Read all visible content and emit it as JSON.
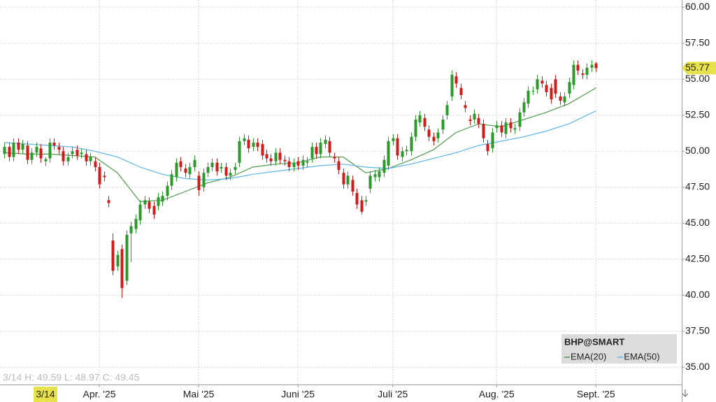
{
  "chart_data": {
    "type": "candlestick",
    "symbol": "BHP@SMART",
    "crosshair_info": "3/14 H: 49.59 L: 48.97 C: 49.45",
    "crosshair_date": "3/14",
    "up_color": "#2a9a2a",
    "down_color": "#d11a1a",
    "ohlc": [
      [
        49.8,
        50.6,
        49.5,
        50.3
      ],
      [
        50.3,
        50.6,
        49.3,
        49.6
      ],
      [
        49.6,
        50.9,
        49.3,
        50.6
      ],
      [
        50.6,
        50.9,
        49.8,
        50.1
      ],
      [
        50.1,
        50.8,
        49.8,
        50.5
      ],
      [
        50.4,
        50.7,
        49.1,
        49.4
      ],
      [
        49.4,
        50.2,
        49.1,
        49.9
      ],
      [
        49.9,
        50.6,
        49.6,
        50.3
      ],
      [
        50.2,
        50.5,
        49.2,
        49.5
      ],
      [
        49.3,
        49.59,
        48.97,
        49.45
      ],
      [
        49.5,
        50.9,
        49.2,
        50.6
      ],
      [
        50.6,
        50.9,
        50.1,
        50.4
      ],
      [
        50.3,
        50.6,
        49.8,
        50.1
      ],
      [
        50.0,
        50.3,
        49.0,
        49.3
      ],
      [
        49.3,
        49.9,
        49.0,
        49.6
      ],
      [
        49.8,
        50.3,
        49.5,
        50.0
      ],
      [
        50.1,
        50.4,
        49.4,
        49.7
      ],
      [
        49.8,
        50.2,
        49.5,
        49.9
      ],
      [
        49.8,
        50.1,
        49.0,
        49.3
      ],
      [
        49.3,
        49.9,
        49.0,
        49.6
      ],
      [
        49.3,
        49.6,
        48.6,
        48.9
      ],
      [
        48.9,
        49.2,
        47.4,
        47.7
      ],
      [
        48.3,
        48.6,
        47.9,
        48.2
      ],
      [
        46.6,
        46.9,
        46.1,
        46.4
      ],
      [
        43.8,
        44.3,
        41.4,
        41.7
      ],
      [
        42.0,
        43.1,
        41.7,
        42.8
      ],
      [
        43.2,
        43.5,
        39.8,
        40.5
      ],
      [
        41.0,
        44.5,
        40.7,
        44.2
      ],
      [
        44.3,
        45.1,
        42.3,
        44.8
      ],
      [
        44.6,
        45.6,
        44.3,
        45.3
      ],
      [
        45.2,
        46.6,
        44.9,
        46.3
      ],
      [
        46.3,
        46.9,
        46.0,
        46.6
      ],
      [
        46.5,
        46.8,
        45.7,
        46.0
      ],
      [
        46.2,
        46.5,
        45.3,
        45.6
      ],
      [
        46.2,
        47.1,
        45.9,
        46.8
      ],
      [
        46.5,
        47.2,
        46.2,
        46.9
      ],
      [
        46.9,
        47.9,
        46.6,
        47.6
      ],
      [
        47.6,
        48.7,
        47.3,
        48.4
      ],
      [
        48.2,
        49.5,
        47.9,
        49.2
      ],
      [
        49.3,
        49.6,
        48.6,
        48.9
      ],
      [
        48.8,
        49.1,
        48.2,
        48.5
      ],
      [
        48.4,
        49.2,
        48.1,
        48.9
      ],
      [
        48.9,
        49.7,
        48.6,
        49.4
      ],
      [
        48.3,
        48.6,
        46.9,
        47.3
      ],
      [
        47.5,
        48.8,
        47.2,
        48.5
      ],
      [
        48.5,
        49.2,
        48.2,
        48.9
      ],
      [
        48.9,
        49.5,
        48.6,
        49.2
      ],
      [
        49.2,
        49.5,
        48.3,
        48.6
      ],
      [
        48.8,
        49.2,
        48.5,
        48.9
      ],
      [
        48.9,
        49.2,
        48.0,
        48.3
      ],
      [
        48.3,
        48.8,
        48.0,
        48.5
      ],
      [
        48.7,
        49.2,
        48.4,
        48.9
      ],
      [
        49.2,
        51.0,
        48.9,
        50.7
      ],
      [
        50.7,
        51.2,
        50.4,
        50.9
      ],
      [
        50.8,
        51.1,
        49.9,
        50.2
      ],
      [
        50.3,
        50.9,
        50.0,
        50.6
      ],
      [
        50.6,
        50.9,
        50.0,
        50.3
      ],
      [
        50.5,
        50.8,
        49.4,
        49.7
      ],
      [
        49.8,
        50.1,
        49.2,
        49.5
      ],
      [
        49.5,
        49.8,
        49.0,
        49.3
      ],
      [
        49.3,
        50.2,
        49.0,
        49.9
      ],
      [
        49.9,
        50.2,
        49.1,
        49.4
      ],
      [
        49.4,
        49.7,
        49.0,
        49.3
      ],
      [
        49.3,
        49.6,
        48.6,
        48.9
      ],
      [
        48.9,
        49.5,
        48.6,
        49.2
      ],
      [
        49.3,
        49.6,
        48.7,
        49.0
      ],
      [
        49.0,
        49.7,
        48.7,
        49.4
      ],
      [
        49.2,
        49.6,
        48.9,
        49.3
      ],
      [
        49.5,
        50.6,
        49.2,
        50.3
      ],
      [
        50.3,
        50.6,
        49.5,
        49.8
      ],
      [
        49.8,
        50.9,
        49.5,
        50.6
      ],
      [
        50.5,
        51.1,
        50.2,
        50.8
      ],
      [
        50.7,
        51.0,
        49.6,
        49.9
      ],
      [
        49.6,
        49.9,
        49.2,
        49.5
      ],
      [
        49.3,
        49.6,
        48.4,
        48.7
      ],
      [
        48.5,
        48.8,
        47.4,
        47.7
      ],
      [
        47.7,
        48.6,
        47.4,
        48.3
      ],
      [
        48.0,
        48.3,
        46.9,
        47.2
      ],
      [
        47.1,
        47.4,
        46.0,
        46.3
      ],
      [
        46.6,
        46.9,
        45.6,
        45.8
      ],
      [
        46.5,
        46.9,
        46.2,
        46.6
      ],
      [
        47.4,
        48.6,
        47.1,
        48.3
      ],
      [
        48.2,
        48.7,
        47.9,
        48.4
      ],
      [
        48.2,
        48.9,
        47.9,
        48.6
      ],
      [
        48.5,
        49.7,
        48.2,
        49.4
      ],
      [
        49.0,
        51.0,
        48.7,
        50.7
      ],
      [
        50.7,
        51.2,
        50.4,
        50.9
      ],
      [
        50.9,
        51.2,
        49.4,
        49.7
      ],
      [
        49.6,
        50.3,
        49.3,
        50.0
      ],
      [
        50.0,
        50.4,
        49.7,
        50.1
      ],
      [
        50.0,
        51.3,
        49.7,
        51.0
      ],
      [
        51.0,
        52.5,
        50.7,
        52.2
      ],
      [
        52.0,
        52.8,
        51.7,
        52.5
      ],
      [
        52.3,
        52.6,
        51.4,
        51.7
      ],
      [
        51.5,
        51.8,
        50.7,
        51.0
      ],
      [
        51.0,
        51.3,
        50.4,
        50.7
      ],
      [
        50.9,
        51.6,
        50.6,
        51.3
      ],
      [
        51.5,
        52.5,
        51.2,
        52.2
      ],
      [
        52.5,
        53.5,
        52.2,
        53.2
      ],
      [
        53.8,
        55.6,
        53.5,
        55.3
      ],
      [
        55.2,
        55.5,
        54.4,
        54.7
      ],
      [
        54.4,
        54.7,
        53.6,
        53.9
      ],
      [
        53.2,
        53.5,
        52.7,
        53.0
      ],
      [
        52.2,
        52.5,
        51.8,
        52.1
      ],
      [
        52.2,
        52.9,
        51.9,
        52.6
      ],
      [
        52.3,
        52.6,
        51.6,
        51.9
      ],
      [
        51.9,
        52.2,
        50.6,
        50.9
      ],
      [
        50.5,
        50.8,
        49.7,
        50.0
      ],
      [
        50.2,
        51.6,
        49.9,
        51.3
      ],
      [
        51.6,
        52.1,
        51.3,
        51.8
      ],
      [
        51.8,
        52.1,
        51.0,
        51.3
      ],
      [
        51.2,
        52.3,
        50.9,
        52.0
      ],
      [
        52.0,
        52.3,
        51.3,
        51.6
      ],
      [
        51.5,
        51.9,
        51.2,
        51.6
      ],
      [
        51.7,
        53.0,
        51.4,
        52.7
      ],
      [
        52.7,
        53.7,
        52.4,
        53.4
      ],
      [
        53.3,
        54.5,
        53.0,
        54.2
      ],
      [
        54.2,
        54.5,
        53.9,
        54.2
      ],
      [
        54.3,
        55.3,
        54.0,
        55.0
      ],
      [
        54.9,
        55.2,
        54.4,
        54.7
      ],
      [
        54.6,
        54.9,
        53.8,
        54.1
      ],
      [
        54.4,
        54.7,
        53.3,
        53.6
      ],
      [
        55.0,
        55.3,
        53.7,
        54.0
      ],
      [
        53.8,
        54.1,
        53.2,
        53.5
      ],
      [
        53.4,
        54.1,
        53.1,
        53.8
      ],
      [
        54.0,
        55.1,
        53.7,
        54.8
      ],
      [
        54.6,
        56.3,
        54.3,
        56.0
      ],
      [
        56.0,
        56.3,
        55.3,
        55.6
      ],
      [
        55.4,
        55.7,
        55.0,
        55.3
      ],
      [
        55.3,
        56.1,
        55.0,
        55.8
      ],
      [
        55.8,
        56.3,
        55.5,
        56.0
      ],
      [
        56.1,
        56.2,
        55.5,
        55.77
      ]
    ],
    "series": [
      {
        "name": "EMA(20)",
        "color": "#4f9a4f",
        "x": [
          0,
          5,
          10,
          15,
          20,
          25,
          30,
          35,
          40,
          45,
          50,
          55,
          60,
          65,
          70,
          75,
          80,
          85,
          90,
          95,
          100,
          105,
          110,
          115,
          120,
          125,
          131
        ],
        "values": [
          49.9,
          49.8,
          49.8,
          49.7,
          49.6,
          48.5,
          46.5,
          46.6,
          47.2,
          47.8,
          48.2,
          48.9,
          49.1,
          49.2,
          49.6,
          49.6,
          48.5,
          48.8,
          49.4,
          50.1,
          51.3,
          51.9,
          51.7,
          52.2,
          52.7,
          53.3,
          54.4
        ]
      },
      {
        "name": "EMA(50)",
        "color": "#5bb5e8",
        "x": [
          0,
          5,
          10,
          15,
          20,
          25,
          30,
          35,
          40,
          45,
          50,
          55,
          60,
          65,
          70,
          75,
          80,
          85,
          90,
          95,
          100,
          105,
          110,
          115,
          120,
          125,
          131
        ],
        "values": [
          50.6,
          50.5,
          50.4,
          50.3,
          50.0,
          49.6,
          48.9,
          48.4,
          48.1,
          48.0,
          48.1,
          48.4,
          48.6,
          48.8,
          49.0,
          49.1,
          48.9,
          48.8,
          49.1,
          49.5,
          49.9,
          50.4,
          50.7,
          51.0,
          51.4,
          51.9,
          52.8
        ]
      }
    ],
    "last_price": {
      "value": 55.77,
      "label": "55.77"
    },
    "xlim": [
      -1,
      150
    ],
    "xticks": [
      {
        "value": 21,
        "label": "Apr. '25"
      },
      {
        "value": 43,
        "label": "Mai '25"
      },
      {
        "value": 65,
        "label": "Juni '25"
      },
      {
        "value": 86,
        "label": "Juli '25"
      },
      {
        "value": 109,
        "label": "Aug. '25"
      },
      {
        "value": 131,
        "label": "Sept. '25"
      }
    ],
    "ylim": [
      33.8,
      60.5
    ],
    "yticks": [
      {
        "value": 35,
        "label": "35.00"
      },
      {
        "value": 37.5,
        "label": "37.50"
      },
      {
        "value": 40,
        "label": "40.00"
      },
      {
        "value": 42.5,
        "label": "42.50"
      },
      {
        "value": 45,
        "label": "45.00"
      },
      {
        "value": 47.5,
        "label": "47.50"
      },
      {
        "value": 50,
        "label": "50.00"
      },
      {
        "value": 52.5,
        "label": "52.50"
      },
      {
        "value": 55,
        "label": "55.00"
      },
      {
        "value": 57.5,
        "label": "57.50"
      },
      {
        "value": 60,
        "label": "60.00"
      }
    ],
    "grid": true
  }
}
